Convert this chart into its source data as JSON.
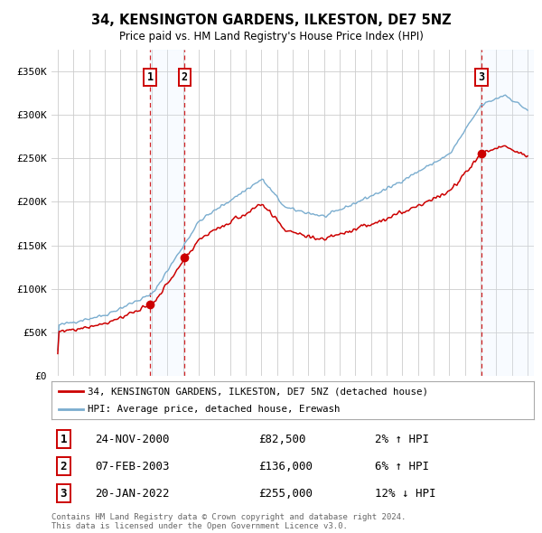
{
  "title": "34, KENSINGTON GARDENS, ILKESTON, DE7 5NZ",
  "subtitle": "Price paid vs. HM Land Registry's House Price Index (HPI)",
  "ylim": [
    0,
    375000
  ],
  "yticks": [
    0,
    50000,
    100000,
    150000,
    200000,
    250000,
    300000,
    350000
  ],
  "ytick_labels": [
    "£0",
    "£50K",
    "£100K",
    "£150K",
    "£200K",
    "£250K",
    "£300K",
    "£350K"
  ],
  "xlim_start": 1994.6,
  "xlim_end": 2025.4,
  "sales": [
    {
      "num": 1,
      "date_str": "24-NOV-2000",
      "year": 2000.9,
      "price": 82500,
      "pct": "2",
      "dir": "↑"
    },
    {
      "num": 2,
      "date_str": "07-FEB-2003",
      "year": 2003.1,
      "price": 136000,
      "pct": "6",
      "dir": "↑"
    },
    {
      "num": 3,
      "date_str": "20-JAN-2022",
      "year": 2022.05,
      "price": 255000,
      "pct": "12",
      "dir": "↓"
    }
  ],
  "legend_line1": "34, KENSINGTON GARDENS, ILKESTON, DE7 5NZ (detached house)",
  "legend_line2": "HPI: Average price, detached house, Erewash",
  "footnote": "Contains HM Land Registry data © Crown copyright and database right 2024.\nThis data is licensed under the Open Government Licence v3.0.",
  "line_color_red": "#cc0000",
  "line_color_blue": "#7aadcf",
  "sale_box_color": "#cc0000",
  "bg_color": "#ffffff",
  "grid_color": "#cccccc",
  "shade_color": "#ddeeff"
}
